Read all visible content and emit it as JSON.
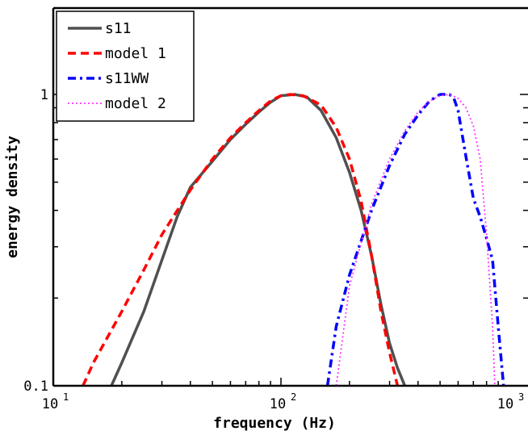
{
  "chart_data": {
    "type": "line",
    "xlabel": "frequency (Hz)",
    "ylabel": "energy density",
    "x_scale": "log",
    "y_scale": "log",
    "xlim": [
      10,
      1000
    ],
    "ylim": [
      0.1,
      2
    ],
    "x_ticks": [
      {
        "base": "10",
        "exp": "1",
        "value": 10
      },
      {
        "base": "10",
        "exp": "2",
        "value": 100
      },
      {
        "base": "10",
        "exp": "3",
        "value": 1000
      }
    ],
    "y_ticks": [
      {
        "label": "0.1",
        "value": 0.1
      },
      {
        "label": "1",
        "value": 1
      }
    ],
    "legend_position": "top-left",
    "series": [
      {
        "name": "s11",
        "color": "#505050",
        "dash": "solid",
        "x": [
          18,
          20,
          25,
          30,
          35,
          40,
          50,
          60,
          70,
          80,
          90,
          100,
          115,
          130,
          150,
          175,
          200,
          225,
          250,
          275,
          300,
          325,
          350
        ],
        "y": [
          0.1,
          0.12,
          0.18,
          0.27,
          0.38,
          0.48,
          0.59,
          0.7,
          0.79,
          0.87,
          0.94,
          0.99,
          1.0,
          0.98,
          0.88,
          0.71,
          0.54,
          0.4,
          0.28,
          0.19,
          0.14,
          0.115,
          0.1
        ]
      },
      {
        "name": "model 1",
        "color": "#ff0000",
        "dash": "dashed",
        "x": [
          13.5,
          15,
          20,
          25,
          30,
          40,
          50,
          60,
          70,
          80,
          90,
          100,
          110,
          125,
          150,
          175,
          200,
          225,
          250,
          275,
          300,
          325
        ],
        "y": [
          0.1,
          0.12,
          0.18,
          0.25,
          0.33,
          0.47,
          0.6,
          0.71,
          0.8,
          0.88,
          0.95,
          0.99,
          1.0,
          0.99,
          0.92,
          0.77,
          0.6,
          0.43,
          0.28,
          0.18,
          0.13,
          0.1
        ]
      },
      {
        "name": "s11WW",
        "color": "#0000ff",
        "dash": "dashdot",
        "x": [
          160,
          175,
          200,
          250,
          300,
          350,
          400,
          450,
          500,
          550,
          575,
          600,
          650,
          700,
          750,
          800,
          850,
          900,
          950
        ],
        "y": [
          0.1,
          0.16,
          0.24,
          0.4,
          0.57,
          0.73,
          0.85,
          0.95,
          1.0,
          1.0,
          0.97,
          0.88,
          0.61,
          0.44,
          0.38,
          0.32,
          0.27,
          0.16,
          0.1
        ]
      },
      {
        "name": "model 2",
        "color": "#ff33ff",
        "dash": "dotted",
        "x": [
          175,
          200,
          250,
          300,
          350,
          400,
          450,
          500,
          550,
          600,
          650,
          700,
          750,
          800,
          850,
          870
        ],
        "y": [
          0.1,
          0.22,
          0.42,
          0.6,
          0.75,
          0.87,
          0.95,
          0.99,
          1.0,
          0.97,
          0.9,
          0.78,
          0.6,
          0.33,
          0.16,
          0.1
        ]
      }
    ]
  }
}
